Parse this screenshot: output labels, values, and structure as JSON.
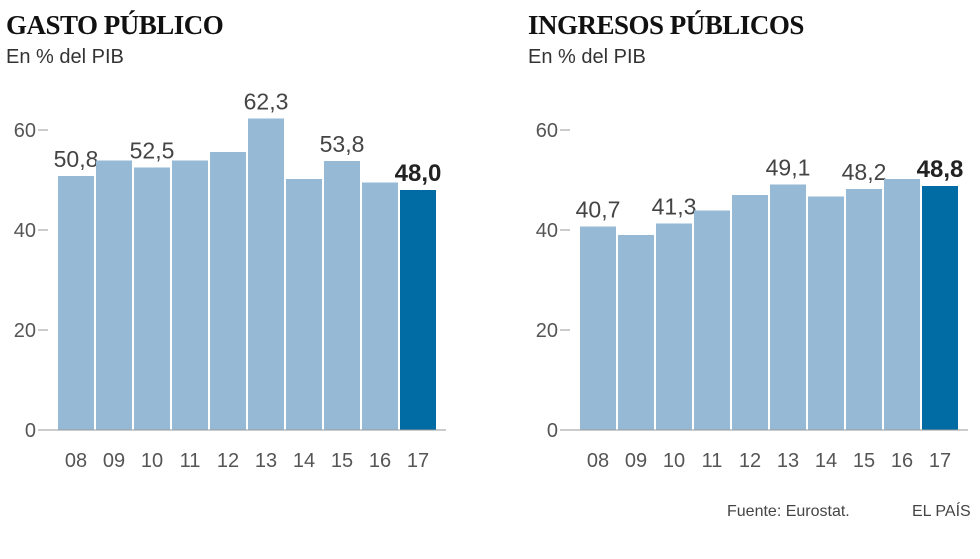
{
  "chart_data": [
    {
      "type": "bar",
      "title": "GASTO PÚBLICO",
      "subtitle": "En % del PIB",
      "categories": [
        "08",
        "09",
        "10",
        "11",
        "12",
        "13",
        "14",
        "15",
        "16",
        "17"
      ],
      "values": [
        50.8,
        53.9,
        52.5,
        53.9,
        55.6,
        62.3,
        50.2,
        53.8,
        49.5,
        48.0
      ],
      "value_labels": [
        "50,8",
        "",
        "52,5",
        "",
        "",
        "62,3",
        "",
        "53,8",
        "",
        "48,0"
      ],
      "highlight_index": 9,
      "ylim": [
        0,
        60
      ],
      "yticks": [
        0,
        20,
        40,
        60
      ],
      "colors": {
        "bar": "#96b9d5",
        "highlight": "#006ca3"
      }
    },
    {
      "type": "bar",
      "title": "INGRESOS PÚBLICOS",
      "subtitle": "En % del PIB",
      "categories": [
        "08",
        "09",
        "10",
        "11",
        "12",
        "13",
        "14",
        "15",
        "16",
        "17"
      ],
      "values": [
        40.7,
        39.0,
        41.3,
        43.9,
        47.0,
        49.1,
        46.7,
        48.2,
        50.2,
        48.8
      ],
      "value_labels": [
        "40,7",
        "",
        "41,3",
        "",
        "",
        "49,1",
        "",
        "48,2",
        "",
        "48,8"
      ],
      "highlight_index": 9,
      "ylim": [
        0,
        60
      ],
      "yticks": [
        0,
        20,
        40,
        60
      ],
      "colors": {
        "bar": "#96b9d5",
        "highlight": "#006ca3"
      }
    }
  ],
  "footer": {
    "source": "Fuente: Eurostat.",
    "brand": "EL PAÍS"
  }
}
